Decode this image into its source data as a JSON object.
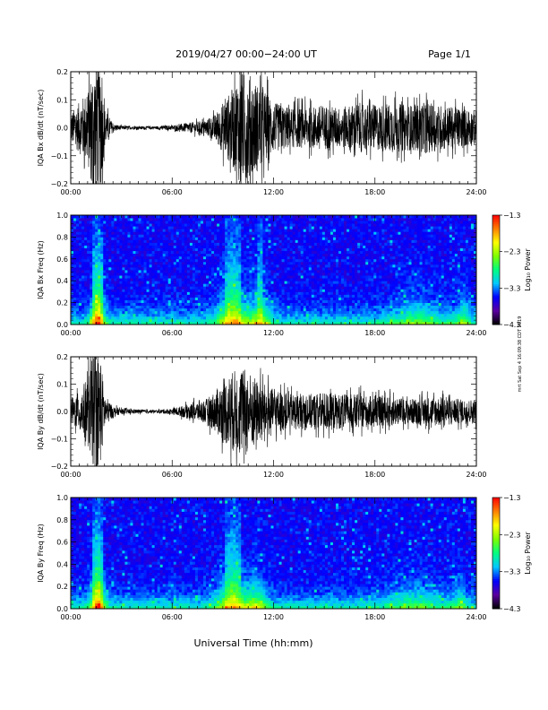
{
  "header": {
    "title": "2019/04/27  00:00−24:00 UT",
    "page": "Page 1/1"
  },
  "side_note": "mrt Sat Sep 4 16:09:38 CDT 2019",
  "colorbar": {
    "title": "Log₁₀ Power",
    "ticks": [
      "−1.3",
      "−2.3",
      "−3.3",
      "−4.3"
    ],
    "range": [
      -4.3,
      -1.3
    ],
    "colormap": [
      "#000000",
      "#5a00a0",
      "#0000ff",
      "#00c8ff",
      "#00ff7f",
      "#7fff00",
      "#ffff00",
      "#ff8000",
      "#ff0000"
    ]
  },
  "chart_data": [
    {
      "type": "line",
      "ylabel": "IQA Bx dB/dt (nT/sec)",
      "ylim": [
        -0.2,
        0.2
      ],
      "yticks": [
        "0.2",
        "0.1",
        "0.0",
        "−0.1",
        "−0.2"
      ],
      "xlim": [
        0,
        24
      ],
      "xticks": [
        "00:00",
        "06:00",
        "12:00",
        "18:00",
        "24:00"
      ],
      "envelope": {
        "hours": [
          0,
          0.5,
          1.0,
          1.3,
          1.5,
          1.8,
          2.0,
          2.5,
          3.0,
          4.0,
          5.0,
          6.0,
          7.0,
          8.0,
          8.5,
          9.0,
          9.5,
          10.0,
          10.5,
          11.0,
          11.5,
          12.0,
          13.0,
          14.0,
          15.0,
          16.0,
          17.0,
          18.0,
          19.0,
          20.0,
          21.0,
          22.0,
          23.0,
          24.0
        ],
        "amplitude": [
          0.06,
          0.1,
          0.15,
          0.25,
          0.28,
          0.22,
          0.08,
          0.015,
          0.008,
          0.006,
          0.006,
          0.01,
          0.02,
          0.03,
          0.05,
          0.1,
          0.15,
          0.22,
          0.22,
          0.18,
          0.15,
          0.1,
          0.08,
          0.08,
          0.09,
          0.08,
          0.1,
          0.09,
          0.1,
          0.09,
          0.1,
          0.09,
          0.08,
          0.07
        ]
      }
    },
    {
      "type": "heatmap",
      "ylabel": "IQA Bx Freq (Hz)",
      "ylim": [
        0,
        1
      ],
      "yticks": [
        "1.0",
        "0.8",
        "0.6",
        "0.4",
        "0.2",
        "0.0"
      ],
      "xlim": [
        0,
        24
      ],
      "xticks": [
        "00:00",
        "06:00",
        "12:00",
        "18:00",
        "24:00"
      ],
      "zlabel": "Log₁₀ Power",
      "zlim": [
        -4.3,
        -1.3
      ],
      "events": [
        {
          "hour": 1.6,
          "width": 0.4,
          "strength": 1.0
        },
        {
          "hour": 9.6,
          "width": 0.9,
          "strength": 0.8
        },
        {
          "hour": 11.2,
          "width": 0.6,
          "strength": 0.6
        },
        {
          "hour": 20.5,
          "width": 1.5,
          "strength": 0.35
        },
        {
          "hour": 23.2,
          "width": 0.4,
          "strength": 0.4
        }
      ]
    },
    {
      "type": "line",
      "ylabel": "IQA By dB/dt (nT/sec)",
      "ylim": [
        -0.2,
        0.2
      ],
      "yticks": [
        "0.2",
        "0.1",
        "0.0",
        "−0.1",
        "−0.2"
      ],
      "xlim": [
        0,
        24
      ],
      "xticks": [
        "00:00",
        "06:00",
        "12:00",
        "18:00",
        "24:00"
      ],
      "envelope": {
        "hours": [
          0,
          0.5,
          1.0,
          1.3,
          1.5,
          1.8,
          2.0,
          2.5,
          3.0,
          4.0,
          5.0,
          6.0,
          7.0,
          8.0,
          8.5,
          9.0,
          9.5,
          10.0,
          10.5,
          11.0,
          11.5,
          12.0,
          13.0,
          14.0,
          15.0,
          16.0,
          17.0,
          18.0,
          19.0,
          20.0,
          21.0,
          22.0,
          23.0,
          24.0
        ],
        "amplitude": [
          0.05,
          0.08,
          0.14,
          0.22,
          0.26,
          0.2,
          0.07,
          0.02,
          0.012,
          0.008,
          0.006,
          0.012,
          0.03,
          0.05,
          0.08,
          0.12,
          0.16,
          0.18,
          0.17,
          0.13,
          0.11,
          0.09,
          0.07,
          0.07,
          0.08,
          0.07,
          0.07,
          0.06,
          0.06,
          0.05,
          0.06,
          0.06,
          0.05,
          0.05
        ]
      }
    },
    {
      "type": "heatmap",
      "ylabel": "IQA By Freq (Hz)",
      "ylim": [
        0,
        1
      ],
      "yticks": [
        "1.0",
        "0.8",
        "0.6",
        "0.4",
        "0.2",
        "0.0"
      ],
      "xlim": [
        0,
        24
      ],
      "xticks": [
        "00:00",
        "06:00",
        "12:00",
        "18:00",
        "24:00"
      ],
      "zlabel": "Log₁₀ Power",
      "zlim": [
        -4.3,
        -1.3
      ],
      "events": [
        {
          "hour": 1.6,
          "width": 0.4,
          "strength": 1.0
        },
        {
          "hour": 9.6,
          "width": 0.9,
          "strength": 0.75
        },
        {
          "hour": 11.0,
          "width": 0.6,
          "strength": 0.5
        },
        {
          "hour": 20.3,
          "width": 1.5,
          "strength": 0.3
        },
        {
          "hour": 23.0,
          "width": 0.4,
          "strength": 0.35
        }
      ]
    }
  ],
  "xaxis": {
    "label": "Universal Time (hh:mm)"
  }
}
